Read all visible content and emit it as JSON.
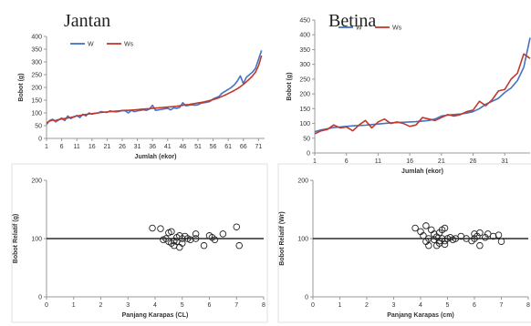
{
  "titles": {
    "left": "Jantan",
    "right": "Betina"
  },
  "colors": {
    "w": "#4472c4",
    "ws": "#c0392b",
    "axis": "#999999",
    "point": "#222222"
  },
  "chart_data": [
    {
      "id": "jantan-line",
      "type": "line",
      "title": "Jantan",
      "xlabel": "Jumlah (ekor)",
      "ylabel": "Bobot (g)",
      "xlim": [
        1,
        73
      ],
      "ylim": [
        0,
        400
      ],
      "xticks": [
        1,
        6,
        11,
        16,
        21,
        26,
        31,
        36,
        41,
        46,
        51,
        56,
        61,
        66,
        71
      ],
      "yticks": [
        0,
        50,
        100,
        150,
        200,
        250,
        300,
        350,
        400
      ],
      "legend": "top-left",
      "x": [
        1,
        2,
        3,
        4,
        5,
        6,
        7,
        8,
        9,
        10,
        11,
        12,
        13,
        14,
        15,
        16,
        17,
        18,
        19,
        20,
        21,
        22,
        23,
        24,
        25,
        26,
        27,
        28,
        29,
        30,
        31,
        32,
        33,
        34,
        35,
        36,
        37,
        38,
        39,
        40,
        41,
        42,
        43,
        44,
        45,
        46,
        47,
        48,
        49,
        50,
        51,
        52,
        53,
        54,
        55,
        56,
        57,
        58,
        59,
        60,
        61,
        62,
        63,
        64,
        65,
        66,
        67,
        68,
        69,
        70,
        71,
        72
      ],
      "series": [
        {
          "name": "W",
          "values": [
            55,
            70,
            75,
            65,
            72,
            80,
            70,
            88,
            78,
            84,
            90,
            82,
            95,
            88,
            100,
            95,
            98,
            100,
            105,
            103,
            102,
            108,
            105,
            104,
            106,
            110,
            108,
            100,
            110,
            105,
            108,
            110,
            112,
            110,
            115,
            130,
            110,
            112,
            114,
            116,
            118,
            112,
            120,
            118,
            122,
            140,
            128,
            130,
            132,
            130,
            132,
            138,
            140,
            142,
            145,
            155,
            160,
            165,
            178,
            185,
            192,
            200,
            210,
            225,
            245,
            215,
            240,
            250,
            260,
            275,
            310,
            345
          ]
        },
        {
          "name": "Ws",
          "values": [
            60,
            68,
            72,
            70,
            74,
            76,
            78,
            80,
            82,
            85,
            88,
            90,
            92,
            94,
            96,
            97,
            99,
            100,
            102,
            103,
            104,
            105,
            106,
            107,
            108,
            109,
            110,
            110,
            111,
            112,
            113,
            114,
            115,
            116,
            117,
            118,
            119,
            120,
            121,
            122,
            123,
            124,
            125,
            126,
            128,
            130,
            132,
            133,
            135,
            137,
            139,
            141,
            143,
            146,
            149,
            152,
            156,
            160,
            165,
            170,
            176,
            182,
            188,
            195,
            203,
            212,
            222,
            233,
            245,
            260,
            285,
            325
          ]
        }
      ]
    },
    {
      "id": "betina-line",
      "type": "line",
      "title": "Betina",
      "xlabel": "Jumlah (ekor)",
      "ylabel": "Bobot (g)",
      "xlim": [
        1,
        35
      ],
      "ylim": [
        0,
        450
      ],
      "xticks": [
        1,
        6,
        11,
        16,
        21,
        26,
        31
      ],
      "yticks": [
        0,
        50,
        100,
        150,
        200,
        250,
        300,
        350,
        400,
        450
      ],
      "legend": "top-left",
      "x": [
        1,
        2,
        3,
        4,
        5,
        6,
        7,
        8,
        9,
        10,
        11,
        12,
        13,
        14,
        15,
        16,
        17,
        18,
        19,
        20,
        21,
        22,
        23,
        24,
        25,
        26,
        27,
        28,
        29,
        30,
        31,
        32,
        33,
        34,
        35
      ],
      "series": [
        {
          "name": "W",
          "values": [
            72,
            78,
            82,
            86,
            88,
            90,
            92,
            93,
            94,
            96,
            98,
            100,
            102,
            103,
            104,
            105,
            106,
            108,
            110,
            115,
            125,
            128,
            130,
            132,
            135,
            140,
            150,
            165,
            175,
            185,
            205,
            220,
            245,
            290,
            390
          ]
        },
        {
          "name": "Ws",
          "values": [
            65,
            75,
            80,
            95,
            85,
            88,
            75,
            95,
            110,
            85,
            105,
            115,
            100,
            105,
            100,
            90,
            95,
            120,
            115,
            110,
            120,
            130,
            125,
            130,
            140,
            145,
            175,
            160,
            180,
            210,
            215,
            250,
            270,
            335,
            320
          ]
        }
      ]
    },
    {
      "id": "jantan-scatter",
      "type": "scatter",
      "xlabel": "Panjang Karapas (CL)",
      "ylabel": "Bobot Relatif (g)",
      "xlim": [
        0,
        8
      ],
      "ylim": [
        0,
        200
      ],
      "xticks": [
        0,
        1,
        2,
        3,
        4,
        5,
        6,
        7,
        8
      ],
      "yticks": [
        0,
        100,
        200
      ],
      "reference_line": 100,
      "points": [
        [
          3.9,
          118
        ],
        [
          4.2,
          117
        ],
        [
          4.3,
          98
        ],
        [
          4.4,
          100
        ],
        [
          4.5,
          95
        ],
        [
          4.5,
          110
        ],
        [
          4.6,
          112
        ],
        [
          4.6,
          92
        ],
        [
          4.7,
          88
        ],
        [
          4.7,
          96
        ],
        [
          4.8,
          95
        ],
        [
          4.8,
          102
        ],
        [
          4.9,
          85
        ],
        [
          4.9,
          105
        ],
        [
          5.0,
          100
        ],
        [
          5.0,
          92
        ],
        [
          5.1,
          104
        ],
        [
          5.2,
          100
        ],
        [
          5.3,
          98
        ],
        [
          5.5,
          108
        ],
        [
          5.5,
          100
        ],
        [
          5.8,
          88
        ],
        [
          6.0,
          105
        ],
        [
          6.1,
          102
        ],
        [
          6.2,
          98
        ],
        [
          6.5,
          108
        ],
        [
          7.0,
          120
        ],
        [
          7.1,
          88
        ]
      ]
    },
    {
      "id": "betina-scatter",
      "type": "scatter",
      "xlabel": "Panjang Karapas (cm)",
      "ylabel": "Bobot Relatif (Wr)",
      "xlim": [
        0,
        8
      ],
      "ylim": [
        0,
        200
      ],
      "xticks": [
        0,
        1,
        2,
        3,
        4,
        5,
        6,
        7,
        8
      ],
      "yticks": [
        0,
        100,
        200
      ],
      "reference_line": 100,
      "points": [
        [
          3.8,
          118
        ],
        [
          4.0,
          112
        ],
        [
          4.1,
          105
        ],
        [
          4.2,
          122
        ],
        [
          4.2,
          95
        ],
        [
          4.3,
          88
        ],
        [
          4.3,
          100
        ],
        [
          4.4,
          115
        ],
        [
          4.5,
          108
        ],
        [
          4.5,
          98
        ],
        [
          4.6,
          88
        ],
        [
          4.6,
          103
        ],
        [
          4.7,
          96
        ],
        [
          4.7,
          92
        ],
        [
          4.7,
          110
        ],
        [
          4.8,
          115
        ],
        [
          4.8,
          100
        ],
        [
          4.9,
          90
        ],
        [
          4.9,
          96
        ],
        [
          4.9,
          118
        ],
        [
          5.0,
          100
        ],
        [
          5.1,
          102
        ],
        [
          5.2,
          98
        ],
        [
          5.3,
          100
        ],
        [
          5.5,
          104
        ],
        [
          5.7,
          100
        ],
        [
          5.9,
          96
        ],
        [
          6.0,
          108
        ],
        [
          6.0,
          100
        ],
        [
          6.1,
          104
        ],
        [
          6.2,
          110
        ],
        [
          6.2,
          88
        ],
        [
          6.4,
          102
        ],
        [
          6.5,
          108
        ],
        [
          6.7,
          104
        ],
        [
          6.9,
          106
        ],
        [
          7.0,
          95
        ]
      ]
    }
  ]
}
